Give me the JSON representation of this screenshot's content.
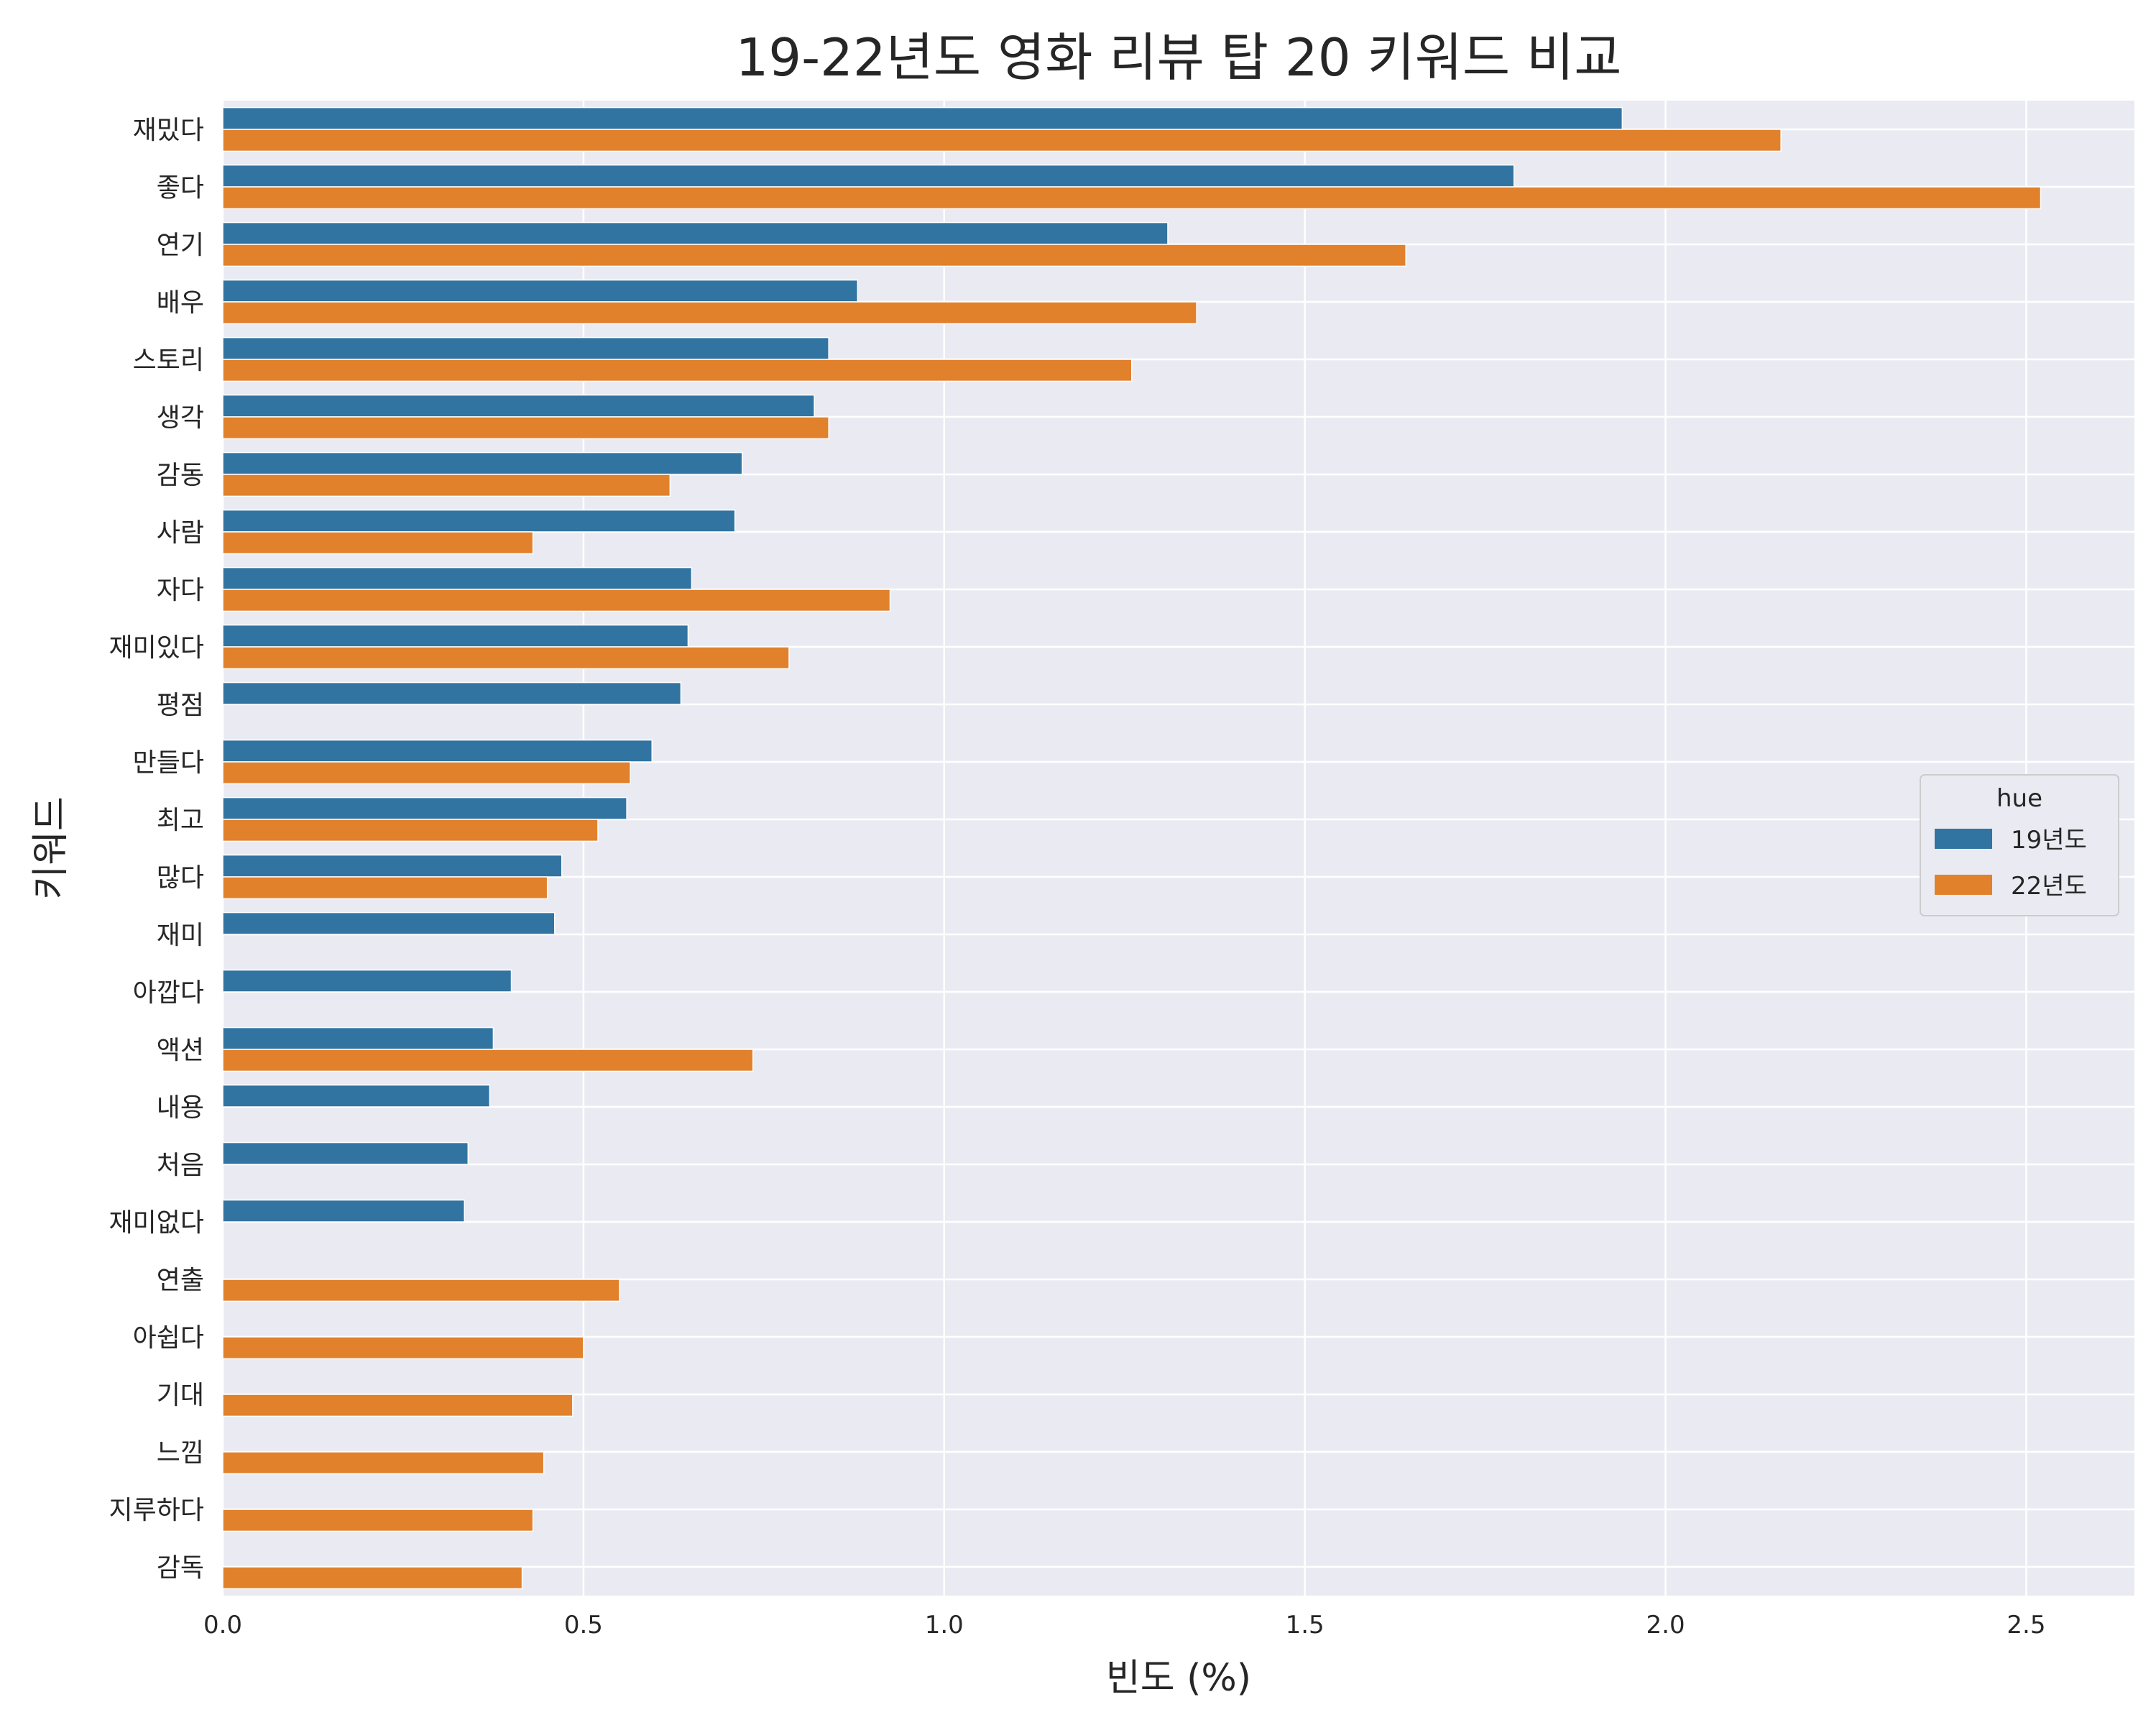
{
  "chart_data": {
    "type": "bar",
    "orientation": "horizontal",
    "title": "19-22년도 영화 리뷰 탑 20 키워드 비교",
    "xlabel": "빈도 (%)",
    "ylabel": "키워드",
    "xlim": [
      0,
      2.65
    ],
    "xticks": [
      0.0,
      0.5,
      1.0,
      1.5,
      2.0,
      2.5
    ],
    "xtick_labels": [
      "0.0",
      "0.5",
      "1.0",
      "1.5",
      "2.0",
      "2.5"
    ],
    "grid": true,
    "legend": {
      "title": "hue",
      "position": "center-right"
    },
    "categories": [
      "재밌다",
      "좋다",
      "연기",
      "배우",
      "스토리",
      "생각",
      "감동",
      "사람",
      "자다",
      "재미있다",
      "평점",
      "만들다",
      "최고",
      "많다",
      "재미",
      "아깝다",
      "액션",
      "내용",
      "처음",
      "재미없다",
      "연출",
      "아쉽다",
      "기대",
      "느낌",
      "지루하다",
      "감독"
    ],
    "series": [
      {
        "name": "19년도",
        "color": "#3274a1",
        "values": [
          1.94,
          1.79,
          1.31,
          0.88,
          0.84,
          0.82,
          0.72,
          0.71,
          0.65,
          0.645,
          0.635,
          0.595,
          0.56,
          0.47,
          0.46,
          0.4,
          0.375,
          0.37,
          0.34,
          0.335,
          null,
          null,
          null,
          null,
          null,
          null
        ]
      },
      {
        "name": "22년도",
        "color": "#e1812c",
        "values": [
          2.16,
          2.52,
          1.64,
          1.35,
          1.26,
          0.84,
          0.62,
          0.43,
          0.925,
          0.785,
          null,
          0.565,
          0.52,
          0.45,
          null,
          null,
          0.735,
          null,
          null,
          null,
          0.55,
          0.5,
          0.485,
          0.445,
          0.43,
          0.415
        ]
      }
    ]
  }
}
